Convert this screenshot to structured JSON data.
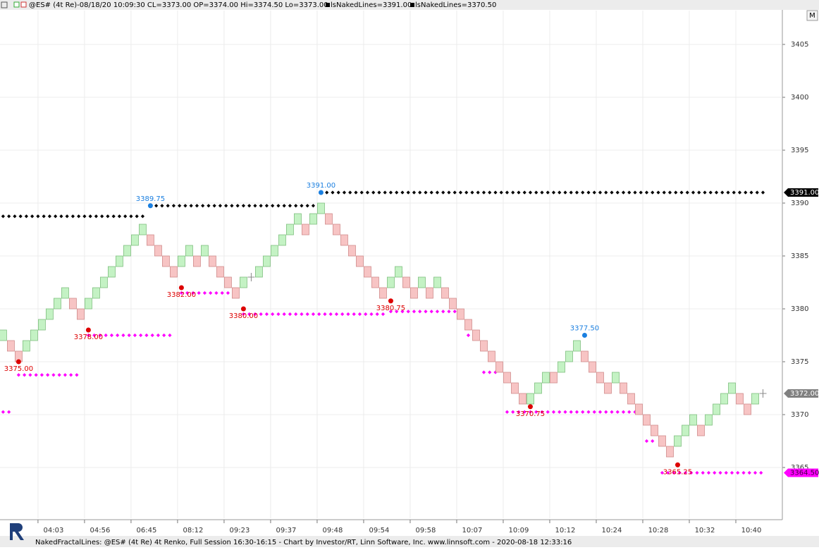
{
  "chart_data": {
    "type": "renko",
    "header": "@ES# (4t Re)-08/18/20 10:09:30 CL=3373.00 OP=3374.00 Hi=3374.50 Lo=3373.00",
    "legend": [
      "lsNakedLines=3391.00",
      "lsNakedLines=3370.50"
    ],
    "button": "M",
    "footer": "NakedFractalLines: @ES# (4t Re) 4t Renko, Full Session 16:30-16:15 - Chart by Investor/RT, Linn Software, Inc. www.linnsoft.com - 2020-08-18 12:33:16",
    "up_color": "#c4f2c4",
    "down_color": "#f7c4c4",
    "open": [
      3377,
      3377,
      3376,
      3376,
      3377,
      3378,
      3379,
      3380,
      3381,
      3381,
      3380,
      3380,
      3381,
      3382,
      3383,
      3384,
      3385,
      3386,
      3387,
      3387,
      3386,
      3385,
      3384,
      3384,
      3385,
      3385,
      3385,
      3385,
      3384,
      3383,
      3382,
      3382,
      3383,
      3383,
      3384,
      3385,
      3386,
      3387,
      3388,
      3388,
      3388,
      3389,
      3389,
      3388,
      3387,
      3386,
      3385,
      3384,
      3383,
      3382,
      3382,
      3383,
      3383,
      3382,
      3382,
      3382,
      3382,
      3382,
      3381,
      3380,
      3379,
      3378,
      3377,
      3376,
      3375,
      3374,
      3373,
      3372,
      3371,
      3372,
      3373,
      3374,
      3374,
      3375,
      3376,
      3376,
      3375,
      3374,
      3373,
      3373,
      3373,
      3372,
      3371,
      3370,
      3369,
      3368,
      3367,
      3367,
      3368,
      3369,
      3369,
      3369,
      3370,
      3371,
      3372,
      3372,
      3371,
      3371,
      3372
    ],
    "close": [
      3378,
      3376,
      3375,
      3377,
      3378,
      3379,
      3380,
      3381,
      3382,
      3380,
      3379,
      3381,
      3382,
      3383,
      3384,
      3385,
      3386,
      3387,
      3388,
      3386,
      3385,
      3384,
      3383,
      3385,
      3386,
      3384,
      3386,
      3384,
      3383,
      3382,
      3381,
      3383,
      3383,
      3384,
      3385,
      3386,
      3387,
      3388,
      3389,
      3387,
      3389,
      3390,
      3388,
      3387,
      3386,
      3385,
      3384,
      3383,
      3382,
      3381,
      3383,
      3384,
      3382,
      3381,
      3383,
      3381,
      3383,
      3381,
      3380,
      3379,
      3378,
      3377,
      3376,
      3375,
      3374,
      3373,
      3372,
      3371,
      3372,
      3373,
      3374,
      3373,
      3375,
      3376,
      3377,
      3375,
      3374,
      3373,
      3372,
      3374,
      3372,
      3371,
      3370,
      3369,
      3368,
      3367,
      3366,
      3368,
      3369,
      3370,
      3368,
      3370,
      3371,
      3372,
      3373,
      3371,
      3370,
      3372,
      3372
    ],
    "xlim": [
      -0.4,
      100.5
    ],
    "xticks": [
      {
        "value": 4.5,
        "label": "04:03"
      },
      {
        "value": 10.5,
        "label": "04:56"
      },
      {
        "value": 16.5,
        "label": "06:45"
      },
      {
        "value": 22.5,
        "label": "08:12"
      },
      {
        "value": 28.5,
        "label": "09:23"
      },
      {
        "value": 34.5,
        "label": "09:37"
      },
      {
        "value": 40.5,
        "label": "09:48"
      },
      {
        "value": 46.5,
        "label": "09:54"
      },
      {
        "value": 52.5,
        "label": "09:58"
      },
      {
        "value": 58.5,
        "label": "10:07"
      },
      {
        "value": 64.5,
        "label": "10:09"
      },
      {
        "value": 70.5,
        "label": "10:12"
      },
      {
        "value": 76.5,
        "label": "10:24"
      },
      {
        "value": 82.5,
        "label": "10:28"
      },
      {
        "value": 88.5,
        "label": "10:32"
      },
      {
        "value": 94.5,
        "label": "10:40"
      }
    ],
    "ylim": [
      3360.2,
      3408.2
    ],
    "yticks": [
      3365,
      3370,
      3375,
      3380,
      3385,
      3390,
      3395,
      3400,
      3405
    ],
    "grid": true,
    "naked_lines": [
      {
        "value": 3388.75,
        "from": 0,
        "to": 18,
        "color": "#000000"
      },
      {
        "value": 3389.75,
        "from": 19,
        "to": 40,
        "color": "#000000"
      },
      {
        "value": 3391,
        "from": 41,
        "to": 98,
        "color": "#000000"
      },
      {
        "value": 3370.25,
        "from": 0,
        "to": 1,
        "color": "#ff00ff"
      },
      {
        "value": 3373.75,
        "from": 2,
        "to": 10,
        "color": "#ff00ff"
      },
      {
        "value": 3377.5,
        "from": 11,
        "to": 22,
        "color": "#ff00ff"
      },
      {
        "value": 3381.5,
        "from": 23,
        "to": 30,
        "color": "#ff00ff"
      },
      {
        "value": 3379.5,
        "from": 31,
        "to": 49,
        "color": "#ff00ff"
      },
      {
        "value": 3379.75,
        "from": 50,
        "to": 59,
        "color": "#ff00ff"
      },
      {
        "value": 3377.5,
        "from": 60,
        "to": 61,
        "color": "#ff00ff"
      },
      {
        "value": 3374,
        "from": 62,
        "to": 64,
        "color": "#ff00ff"
      },
      {
        "value": 3370.25,
        "from": 65,
        "to": 82,
        "color": "#ff00ff"
      },
      {
        "value": 3367.5,
        "from": 83,
        "to": 84,
        "color": "#ff00ff"
      },
      {
        "value": 3364.5,
        "from": 85,
        "to": 98,
        "color": "#ff00ff"
      }
    ],
    "fractals": [
      {
        "index": 19,
        "value": 3389.75,
        "label": "3389.75",
        "color": "#1a7fe0",
        "side": "high"
      },
      {
        "index": 41,
        "value": 3391,
        "label": "3391.00",
        "color": "#1a7fe0",
        "side": "high"
      },
      {
        "index": 75,
        "value": 3377.5,
        "label": "3377.50",
        "color": "#1a7fe0",
        "side": "high"
      },
      {
        "index": 2,
        "value": 3375,
        "label": "3375.00",
        "color": "#dd0000",
        "side": "low"
      },
      {
        "index": 11,
        "value": 3378,
        "label": "3378.00",
        "color": "#dd0000",
        "side": "low"
      },
      {
        "index": 23,
        "value": 3382,
        "label": "3382.00",
        "color": "#dd0000",
        "side": "low"
      },
      {
        "index": 31,
        "value": 3380,
        "label": "3380.00",
        "color": "#dd0000",
        "side": "low"
      },
      {
        "index": 50,
        "value": 3380.75,
        "label": "3380.75",
        "color": "#dd0000",
        "side": "low"
      },
      {
        "index": 68,
        "value": 3370.75,
        "label": "3370.75",
        "color": "#dd0000",
        "side": "low"
      },
      {
        "index": 87,
        "value": 3365.25,
        "label": "3365.25",
        "color": "#dd0000",
        "side": "low"
      }
    ],
    "axis_markers": [
      {
        "value": 3391,
        "label": "3391.00",
        "color": "#000000",
        "text_color": "#ffffff"
      },
      {
        "value": 3372,
        "label": "3372.00",
        "color": "#808080",
        "text_color": "#ffffff"
      },
      {
        "value": 3364.5,
        "label": "3364.50",
        "color": "#ff00ff",
        "text_color": "#400040"
      }
    ]
  }
}
